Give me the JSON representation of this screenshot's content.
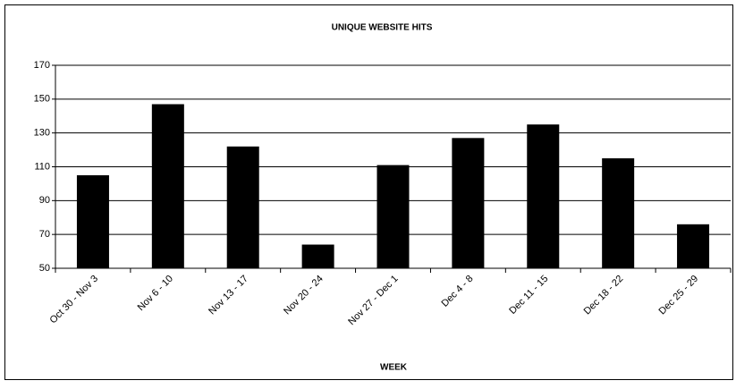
{
  "chart_data": {
    "type": "bar",
    "title": "UNIQUE WEBSITE HITS",
    "x_label": "WEEK",
    "categories": [
      "Oct 30 - Nov 3",
      "Nov 6 - 10",
      "Nov 13 - 17",
      "Nov 20 - 24",
      "Nov 27 - Dec 1",
      "Dec 4 - 8",
      "Dec 11 - 15",
      "Dec 18 - 22",
      "Dec 25 - 29"
    ],
    "values": [
      105,
      147,
      122,
      64,
      111,
      127,
      135,
      115,
      76
    ],
    "color": "#000000",
    "ylim": [
      50,
      170
    ],
    "yticks": [
      50,
      70,
      90,
      110,
      130,
      150,
      170
    ],
    "grid": true
  }
}
